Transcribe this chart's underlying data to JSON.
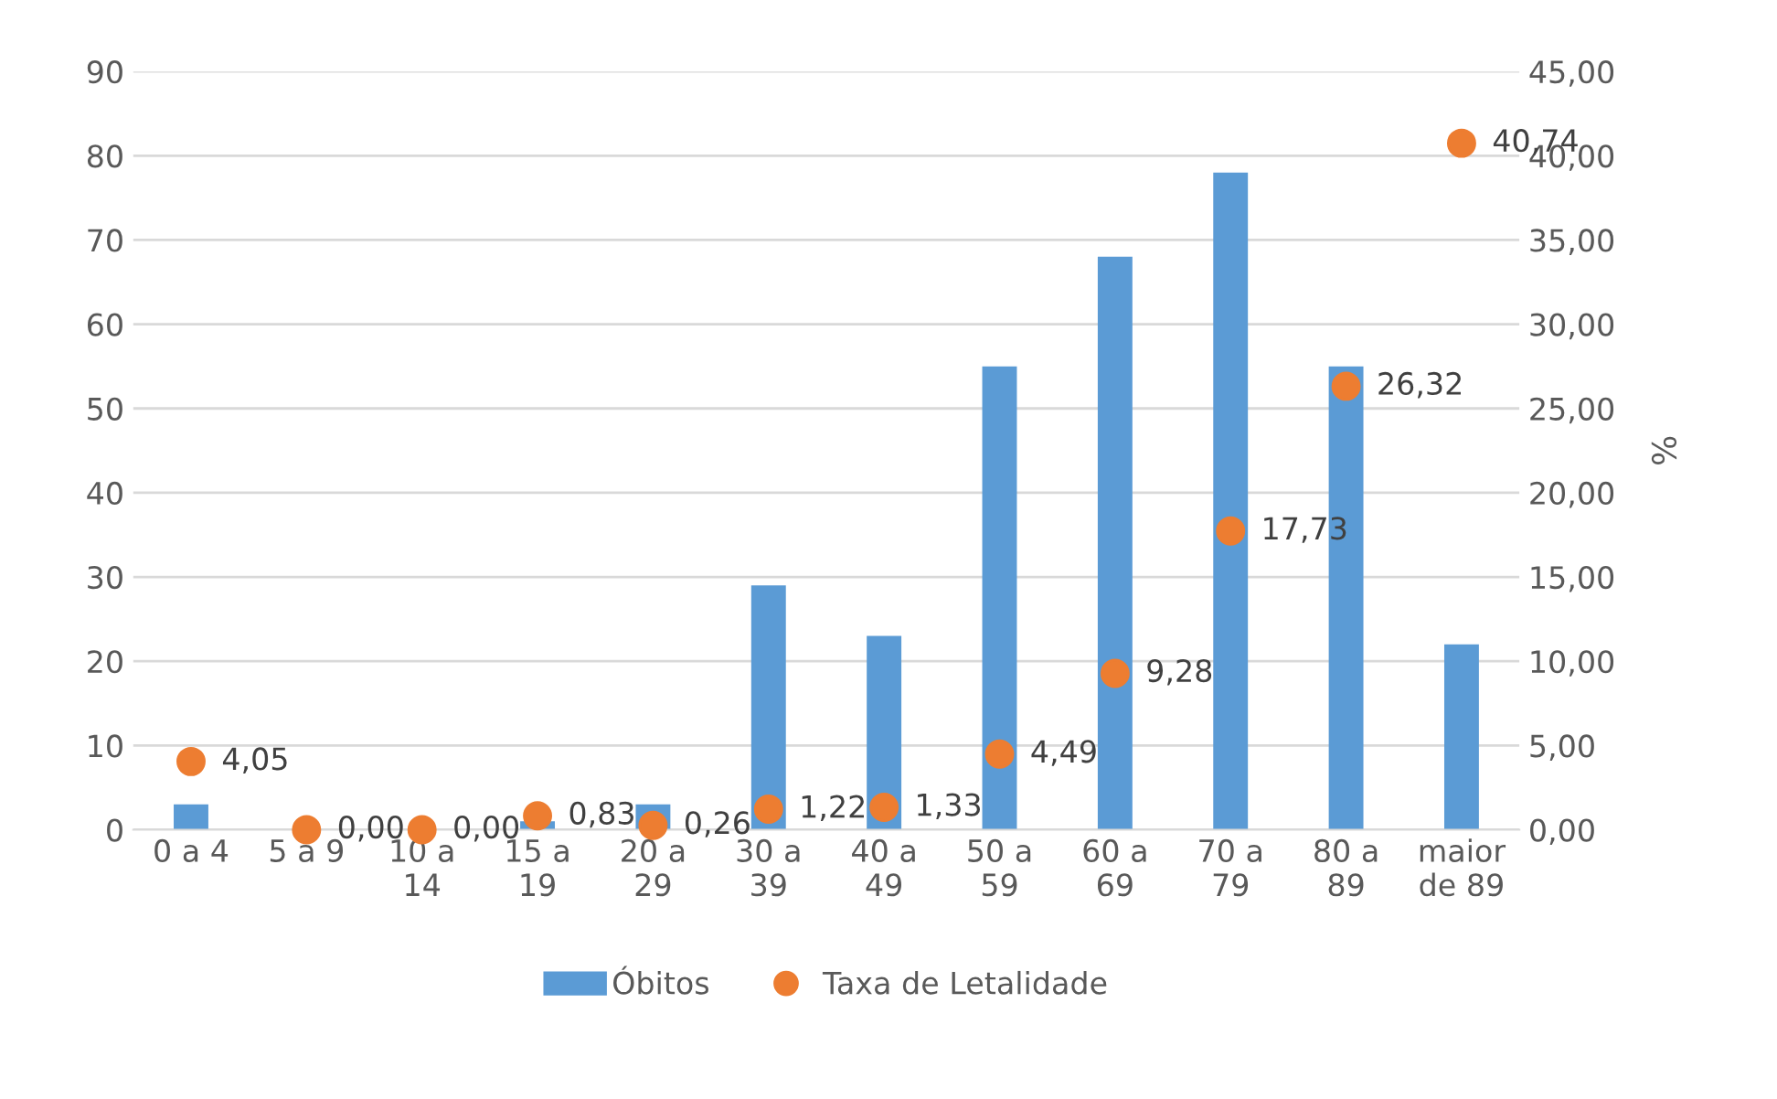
{
  "chart_data": {
    "type": "bar",
    "categories": [
      "0 a 4",
      "5 a 9",
      "10 a\n14",
      "15 a\n19",
      "20 a\n29",
      "30 a\n39",
      "40 a\n49",
      "50 a\n59",
      "60 a\n69",
      "70 a\n79",
      "80 a\n89",
      "maior\nde 89"
    ],
    "series": [
      {
        "name": "Óbitos",
        "color": "#5b9bd5",
        "values": [
          3,
          0,
          0,
          1,
          3,
          29,
          23,
          55,
          68,
          78,
          55,
          22
        ]
      },
      {
        "name": "Taxa de Letalidade",
        "type": "scatter",
        "axis": "y2",
        "color": "#ed7d31",
        "values": [
          4.05,
          0.0,
          0.0,
          0.83,
          0.26,
          1.22,
          1.33,
          4.49,
          9.28,
          17.73,
          26.32,
          40.74
        ],
        "value_labels": [
          "4,05",
          "0,00",
          "0,00",
          "0,83",
          "0,26",
          "1,22",
          "1,33",
          "4,49",
          "9,28",
          "17,73",
          "26,32",
          "40,74"
        ]
      }
    ],
    "ylim": [
      0,
      90
    ],
    "yticks": [
      0,
      10,
      20,
      30,
      40,
      50,
      60,
      70,
      80,
      90
    ],
    "y2lim": [
      0,
      45
    ],
    "y2ticks": [
      {
        "value": 0,
        "label": "0,00"
      },
      {
        "value": 5,
        "label": "5,00"
      },
      {
        "value": 10,
        "label": "10,00"
      },
      {
        "value": 15,
        "label": "15,00"
      },
      {
        "value": 20,
        "label": "20,00"
      },
      {
        "value": 25,
        "label": "25,00"
      },
      {
        "value": 30,
        "label": "30,00"
      },
      {
        "value": 35,
        "label": "35,00"
      },
      {
        "value": 40,
        "label": "40,00"
      },
      {
        "value": 45,
        "label": "45,00"
      }
    ],
    "y2label": "%",
    "grid": "y",
    "legend": "bottom",
    "marker": "circle"
  }
}
